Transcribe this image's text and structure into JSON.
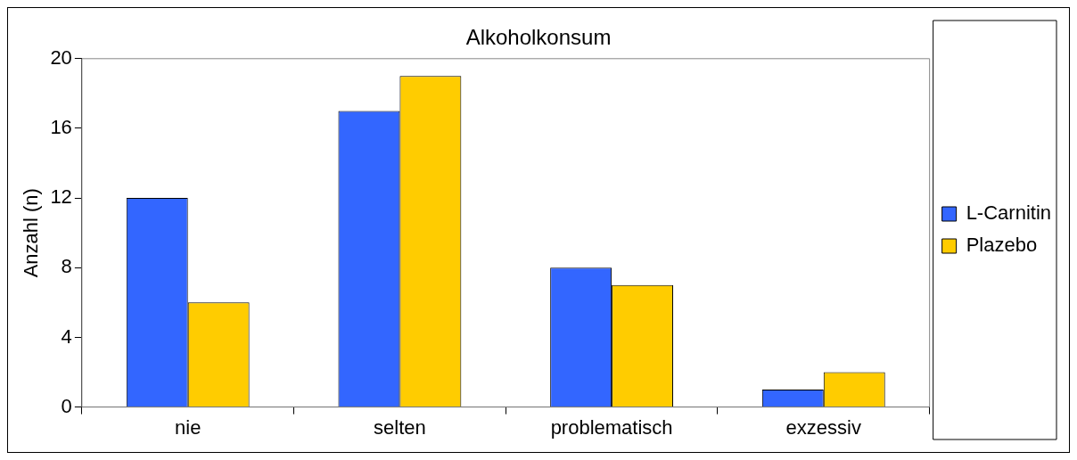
{
  "chart_data": {
    "type": "bar",
    "title": "Alkoholkonsum",
    "ylabel": "Anzahl (n)",
    "categories": [
      "nie",
      "selten",
      "problematisch",
      "exzessiv"
    ],
    "series": [
      {
        "name": "L-Carnitin",
        "color": "#3366ff",
        "values": [
          12,
          17,
          8,
          1
        ]
      },
      {
        "name": "Plazebo",
        "color": "#ffcc00",
        "values": [
          6,
          19,
          7,
          2
        ]
      }
    ],
    "ylim": [
      0,
      20
    ],
    "yticks": [
      0,
      4,
      8,
      12,
      16,
      20
    ],
    "grid": false,
    "legend": "right"
  }
}
